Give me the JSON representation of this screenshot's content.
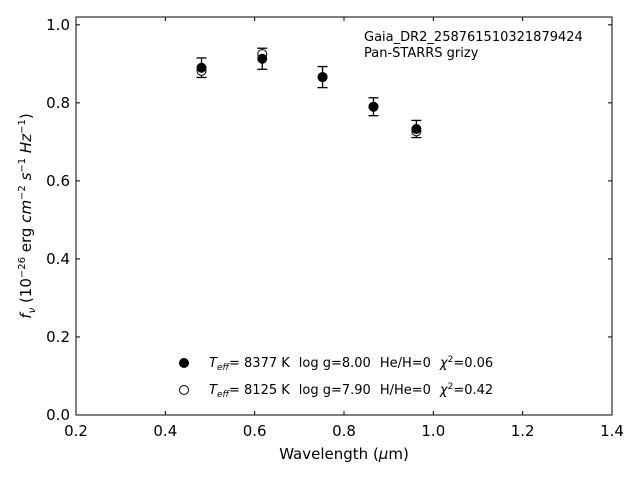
{
  "chart_data": {
    "type": "scatter",
    "annotations": [
      "Gaia_DR2_258761510321879424",
      "Pan-STARRS grizy"
    ],
    "xlabel": {
      "main": "Wavelength (",
      "sym": "μ",
      "post": "m)"
    },
    "ylabel": {
      "f": "f",
      "fsub": "ν",
      "a": " (10",
      "e1": "−26",
      "b": " erg ",
      "cm": "cm",
      "e2": "−2",
      "s": "s",
      "e3": "−1",
      "hz": "Hz",
      "e4": "−1",
      "c": ")"
    },
    "xlim": [
      0.2,
      1.4
    ],
    "ylim": [
      0.0,
      1.02
    ],
    "xticks": [
      "0.2",
      "0.4",
      "0.6",
      "0.8",
      "1.0",
      "1.2",
      "1.4"
    ],
    "yticks": [
      "0.0",
      "0.2",
      "0.4",
      "0.6",
      "0.8",
      "1.0"
    ],
    "grid": false,
    "legend_position": "lower-center",
    "series": [
      {
        "marker": "filled-circle",
        "x": [
          0.481,
          0.617,
          0.752,
          0.866,
          0.962
        ],
        "y": [
          0.89,
          0.913,
          0.866,
          0.79,
          0.733
        ]
      },
      {
        "marker": "open-circle",
        "x": [
          0.481,
          0.617,
          0.752,
          0.866,
          0.962
        ],
        "y": [
          0.882,
          0.925,
          0.866,
          0.79,
          0.727
        ]
      },
      {
        "marker": "errorbar",
        "x": [
          0.481,
          0.617,
          0.752,
          0.866,
          0.962
        ],
        "y": [
          0.89,
          0.913,
          0.866,
          0.79,
          0.733
        ],
        "yerr": [
          0.025,
          0.027,
          0.027,
          0.023,
          0.022
        ]
      }
    ],
    "legend": [
      {
        "marker": "filled-circle",
        "t": "T",
        "tsub": "eff",
        "teff": "=  8377 K",
        "logg": "log g=8.00",
        "comp": "He/H=0",
        "chi": "χ",
        "chisup": "2",
        "chival": "=0.06"
      },
      {
        "marker": "open-circle",
        "t": "T",
        "tsub": "eff",
        "teff": "=  8125 K",
        "logg": "log g=7.90",
        "comp": "H/He=0",
        "chi": "χ",
        "chisup": "2",
        "chival": "=0.42"
      }
    ]
  }
}
